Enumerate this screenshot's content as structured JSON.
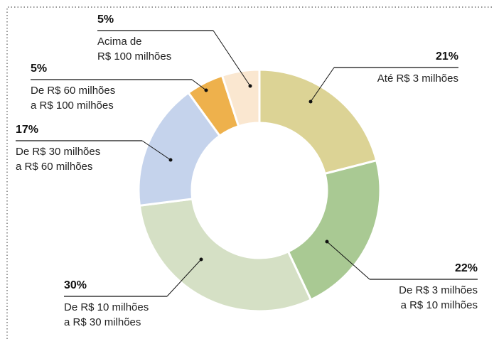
{
  "chart_data": {
    "type": "donut",
    "categories": [
      "Até R$ 3 milhões",
      "De R$ 3 milhões\na R$ 10 milhões",
      "De R$ 10 milhões\na R$ 30 milhões",
      "De R$ 30 milhões\na R$ 60 milhões",
      "De R$ 60 milhões\na R$ 100 milhões",
      "Acima de\nR$ 100 milhões"
    ],
    "values": [
      21,
      22,
      30,
      17,
      5,
      5
    ],
    "value_labels": [
      "21%",
      "22%",
      "30%",
      "17%",
      "5%",
      "5%"
    ],
    "colors": [
      "#dcd395",
      "#a9c993",
      "#d5e0c5",
      "#c5d3ec",
      "#eeb14c",
      "#fae7d0"
    ]
  }
}
